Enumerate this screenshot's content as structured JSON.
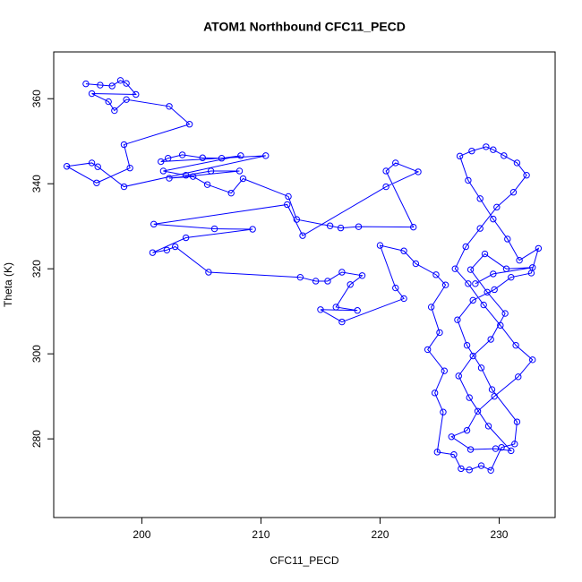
{
  "chart_data": {
    "type": "line",
    "title": "ATOM1 Northbound CFC11_PECD",
    "x_label": "CFC11_PECD",
    "y_label": "Theta (K)",
    "x": [
      195.3,
      196.5,
      197.5,
      198.2,
      198.7,
      199.5,
      195.8,
      197.2,
      197.7,
      198.7,
      202.3,
      204,
      198.5,
      199,
      196.2,
      193.7,
      195.8,
      196.3,
      198.5,
      210.4,
      201.6,
      202.2,
      203.4,
      205.1,
      206.7,
      208.3,
      201.8,
      203.7,
      205.8,
      208.2,
      202.3,
      204.3,
      205.5,
      207.5,
      208.5,
      212.3,
      213,
      215.8,
      216.7,
      218.2,
      222.8,
      220.5,
      221.3,
      223.2,
      220.5,
      213.5,
      212.2,
      201,
      206.1,
      209.3,
      203.7,
      200.9,
      202.1,
      202.8,
      205.6,
      213.3,
      214.6,
      215.6,
      216.8,
      218.5,
      217.5,
      216.3,
      218.1,
      215,
      216.8,
      222,
      221.3,
      220,
      222,
      223,
      224.7,
      225.5,
      224.3,
      225,
      224,
      225.4,
      224.6,
      225.3,
      224.8,
      226.2,
      226.8,
      227.5,
      228.5,
      229.3,
      230.2,
      231.3,
      231.5,
      229.4,
      228.5,
      227.3,
      226.5,
      227.8,
      229.6,
      231,
      232.7,
      233.3,
      231.7,
      230.7,
      229.5,
      228.4,
      227.4,
      226.7,
      227.7,
      228.9,
      229.5,
      230.4,
      231.5,
      232.3,
      231.2,
      229.8,
      228.4,
      227.2,
      226.3,
      227.4,
      228.7,
      230.1,
      231.4,
      232.8,
      231.6,
      229.6,
      228.2,
      227.3,
      226,
      227.6,
      229.7,
      231,
      229.1,
      227.5,
      226.6,
      227.8,
      229.3,
      230.5,
      229,
      227.6,
      228.8,
      230.6,
      232.8,
      229.5,
      228
    ],
    "series": [
      {
        "name": "Theta (K)",
        "color": "#0000ff",
        "values": [
          363.5,
          363.2,
          363,
          364.3,
          363.6,
          361,
          361.2,
          359.3,
          357.2,
          359.8,
          358.2,
          354,
          349.2,
          343.7,
          340.2,
          344.1,
          344.9,
          344,
          339.3,
          346.6,
          345.2,
          346,
          346.8,
          346.1,
          346,
          346.6,
          343,
          342,
          343,
          343,
          341.3,
          341.7,
          339.8,
          337.8,
          341.2,
          337,
          331.6,
          330.1,
          329.6,
          329.9,
          329.8,
          343,
          344.9,
          342.8,
          339.3,
          327.8,
          335.1,
          330.5,
          329.4,
          329.3,
          327.3,
          323.8,
          324.4,
          325.2,
          319.2,
          318,
          317.1,
          317.1,
          319.2,
          318.4,
          316.3,
          311,
          310.2,
          310.4,
          307.5,
          313,
          315.5,
          325.5,
          324.2,
          321.2,
          318.6,
          316.2,
          311,
          305,
          301,
          296,
          290.8,
          286.3,
          276.9,
          276.3,
          273,
          272.7,
          273.7,
          272.6,
          278,
          278.8,
          284,
          291.6,
          296.7,
          302,
          308,
          312.6,
          315.1,
          318,
          319,
          324.8,
          322,
          327,
          331.7,
          336.5,
          340.8,
          346.5,
          347.7,
          348.7,
          348,
          346.6,
          344.9,
          342,
          338,
          334.5,
          329.5,
          325.2,
          320,
          316.5,
          311.5,
          306.7,
          302,
          298.6,
          294.6,
          290,
          286.5,
          282,
          280.5,
          277.5,
          277.7,
          277.2,
          283,
          289.7,
          294.8,
          299.5,
          303.4,
          309.5,
          314.5,
          319.8,
          323.5,
          320,
          320.3,
          318.8,
          316.5
        ]
      }
    ],
    "xlim": [
      192.6,
      234.7
    ],
    "ylim": [
      261.5,
      371
    ],
    "xticks": [
      200,
      210,
      220,
      230
    ],
    "yticks": [
      280,
      300,
      320,
      340,
      360
    ]
  }
}
